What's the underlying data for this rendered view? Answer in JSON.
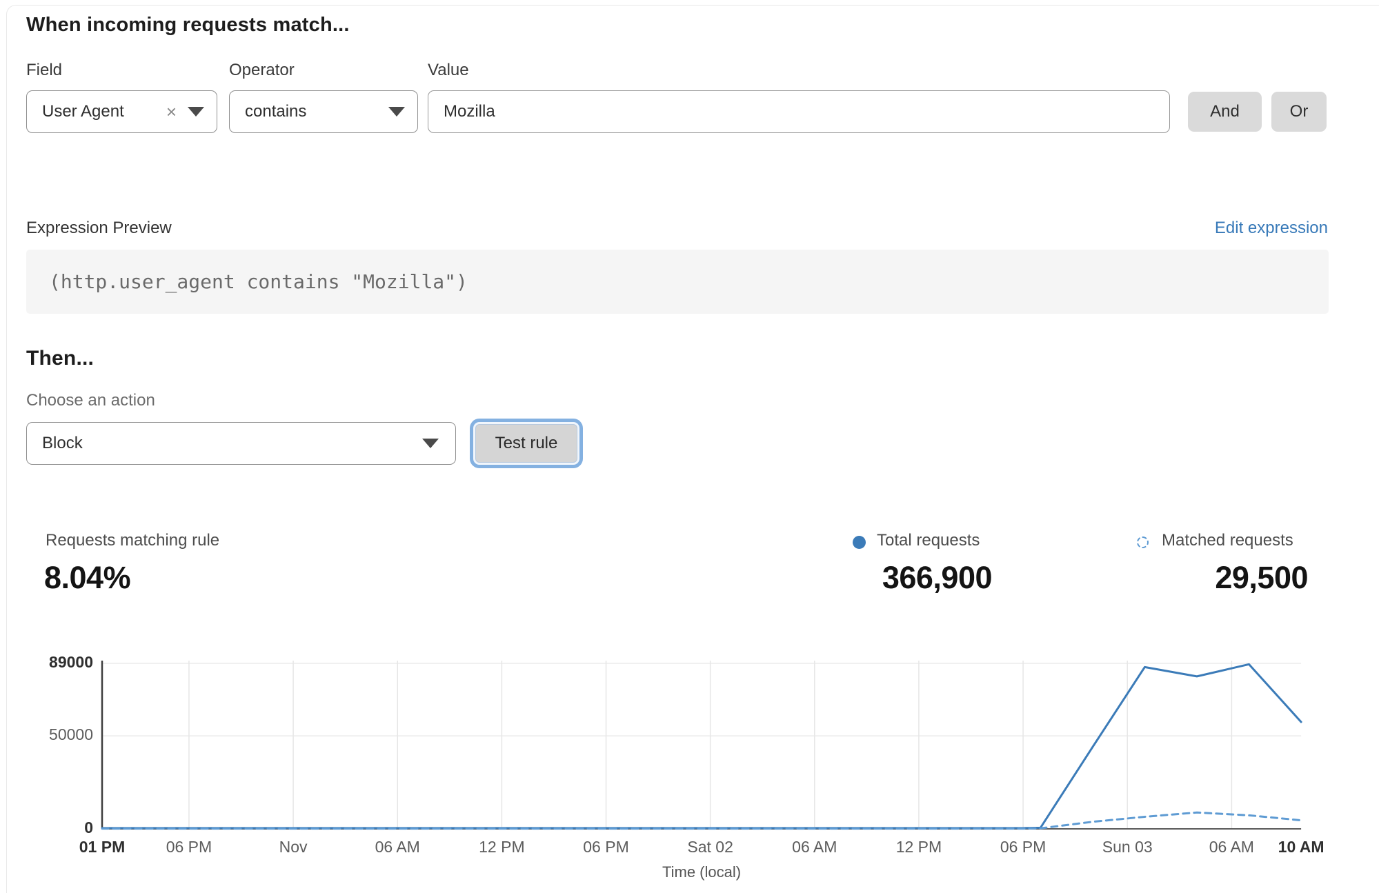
{
  "rule_builder": {
    "title": "When incoming requests match...",
    "field": {
      "label": "Field",
      "value": "User Agent",
      "clear_icon": "×"
    },
    "operator": {
      "label": "Operator",
      "value": "contains"
    },
    "value": {
      "label": "Value",
      "value": "Mozilla"
    },
    "and_label": "And",
    "or_label": "Or"
  },
  "expression": {
    "label": "Expression Preview",
    "edit_link": "Edit expression",
    "code": "(http.user_agent contains \"Mozilla\")"
  },
  "action": {
    "title": "Then...",
    "label": "Choose an action",
    "selected": "Block",
    "test_button": "Test rule"
  },
  "stats": {
    "match_label": "Requests matching rule",
    "match_value": "8.04%",
    "total_label": "Total requests",
    "total_value": "366,900",
    "matched_label": "Matched requests",
    "matched_value": "29,500"
  },
  "colors": {
    "total_line": "#3b7bb8",
    "matched_line": "#5e9bd3",
    "link_blue": "#3779b8",
    "grid": "#e6e6e6",
    "axis": "#3f3f3f"
  },
  "chart_data": {
    "type": "line",
    "title": "",
    "xlabel": "Time (local)",
    "ylabel": "",
    "ylim": [
      0,
      89000
    ],
    "grid": true,
    "legend_position": "top-right",
    "x_total_hours": 69,
    "y_ticks": [
      {
        "value": 0,
        "label": "0",
        "bold": true
      },
      {
        "value": 50000,
        "label": "50000",
        "bold": false
      },
      {
        "value": 89000,
        "label": "89000",
        "bold": true
      }
    ],
    "x_ticks": [
      {
        "hour": 0,
        "label": "01 PM",
        "bold": true
      },
      {
        "hour": 5,
        "label": "06 PM",
        "bold": false
      },
      {
        "hour": 11,
        "label": "Nov",
        "bold": false
      },
      {
        "hour": 17,
        "label": "06 AM",
        "bold": false
      },
      {
        "hour": 23,
        "label": "12 PM",
        "bold": false
      },
      {
        "hour": 29,
        "label": "06 PM",
        "bold": false
      },
      {
        "hour": 35,
        "label": "Sat 02",
        "bold": false
      },
      {
        "hour": 41,
        "label": "06 AM",
        "bold": false
      },
      {
        "hour": 47,
        "label": "12 PM",
        "bold": false
      },
      {
        "hour": 53,
        "label": "06 PM",
        "bold": false
      },
      {
        "hour": 59,
        "label": "Sun 03",
        "bold": false
      },
      {
        "hour": 65,
        "label": "06 AM",
        "bold": false
      },
      {
        "hour": 69,
        "label": "10 AM",
        "bold": true
      }
    ],
    "series": [
      {
        "name": "Total requests",
        "style": "solid",
        "color": "#3b7bb8",
        "points": [
          [
            0,
            400
          ],
          [
            5,
            400
          ],
          [
            11,
            400
          ],
          [
            17,
            400
          ],
          [
            23,
            400
          ],
          [
            29,
            400
          ],
          [
            35,
            400
          ],
          [
            41,
            400
          ],
          [
            47,
            400
          ],
          [
            53,
            400
          ],
          [
            54,
            600
          ],
          [
            57,
            44000
          ],
          [
            60,
            87000
          ],
          [
            63,
            82000
          ],
          [
            66,
            88500
          ],
          [
            69,
            57500
          ]
        ]
      },
      {
        "name": "Matched requests",
        "style": "dashed",
        "color": "#5e9bd3",
        "points": [
          [
            0,
            150
          ],
          [
            5,
            150
          ],
          [
            11,
            150
          ],
          [
            17,
            150
          ],
          [
            23,
            150
          ],
          [
            29,
            150
          ],
          [
            35,
            150
          ],
          [
            41,
            150
          ],
          [
            47,
            150
          ],
          [
            53,
            150
          ],
          [
            54,
            300
          ],
          [
            57,
            3800
          ],
          [
            60,
            6500
          ],
          [
            63,
            8800
          ],
          [
            66,
            7300
          ],
          [
            69,
            4600
          ]
        ]
      }
    ]
  }
}
